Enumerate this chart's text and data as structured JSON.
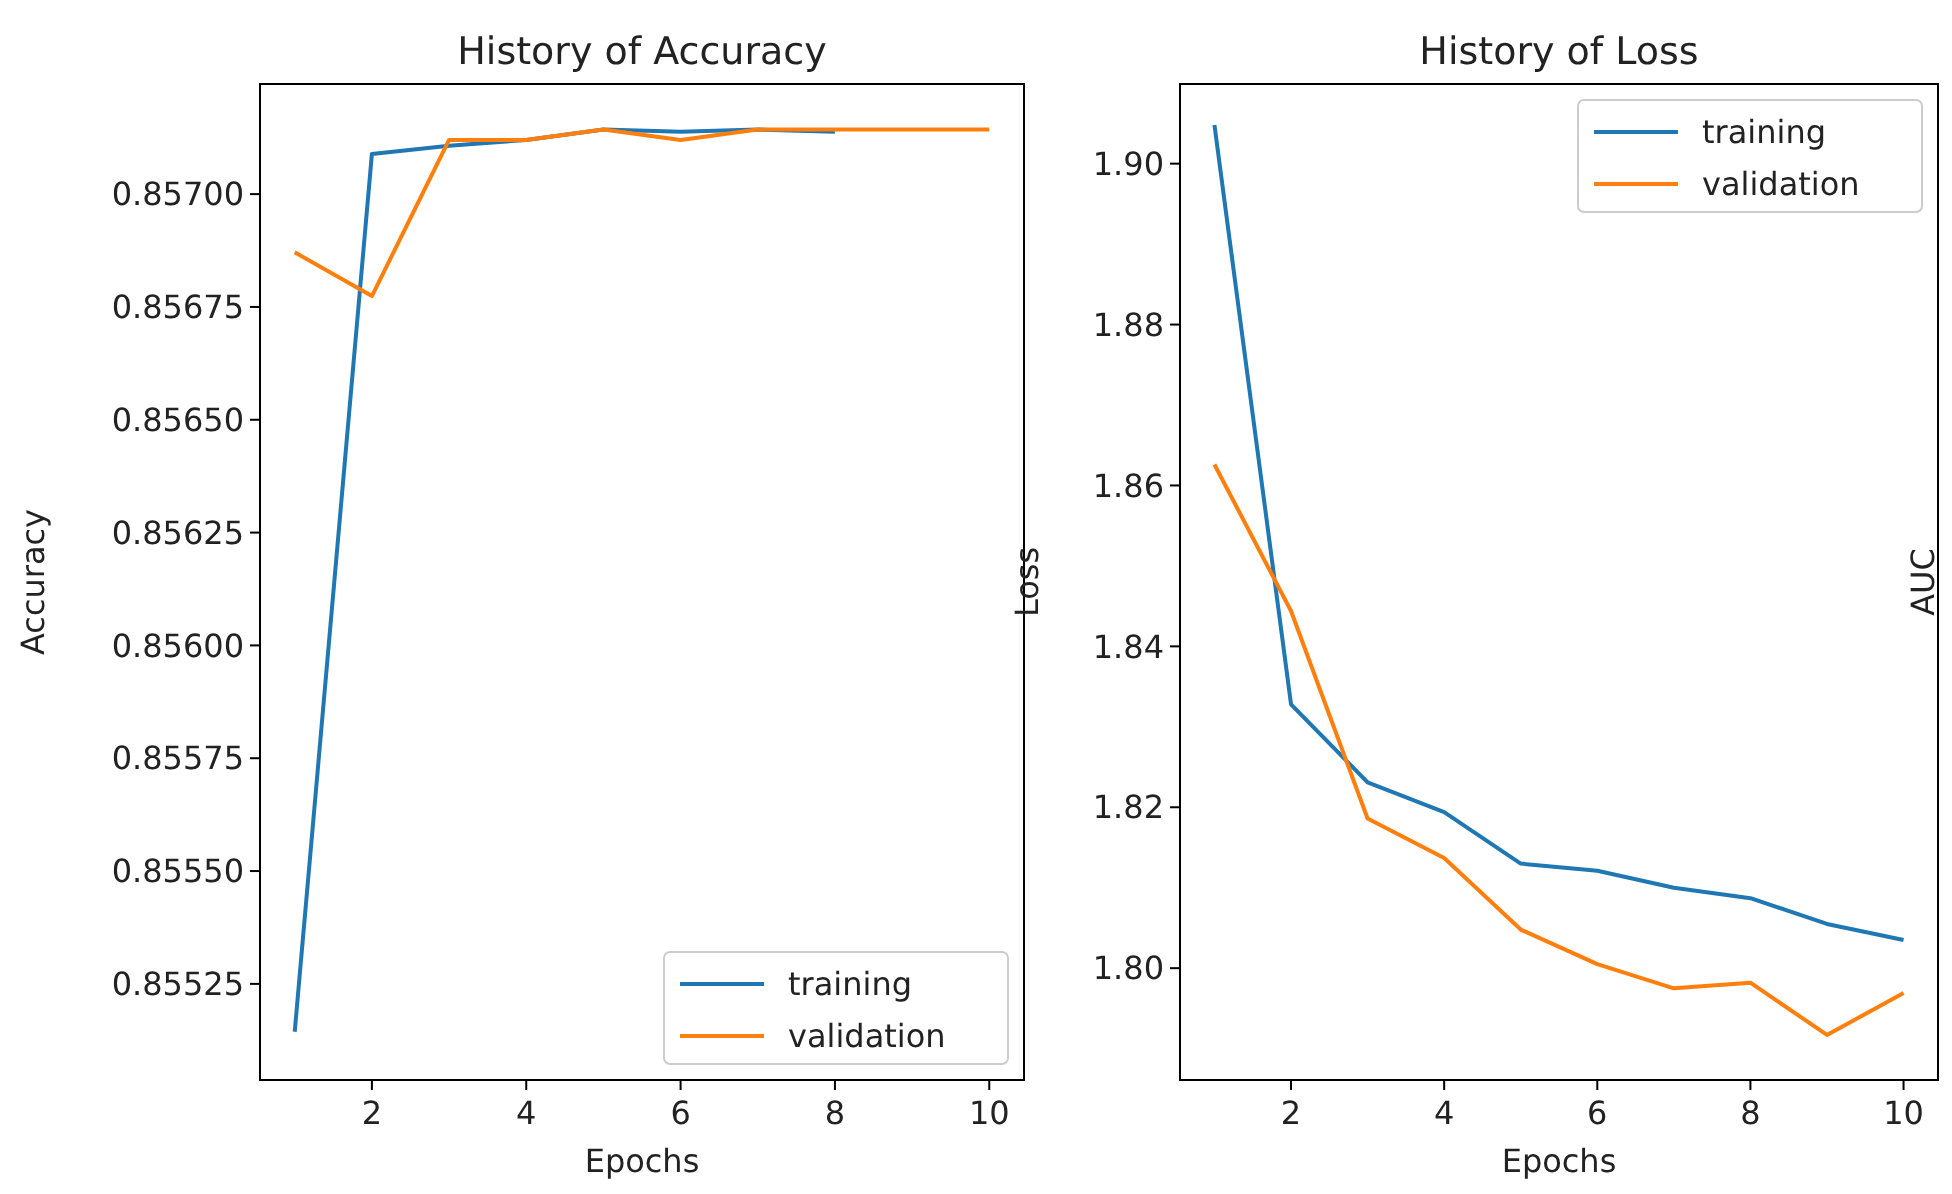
{
  "chart_data": [
    {
      "type": "line",
      "title": "History of Accuracy",
      "xlabel": "Epochs",
      "ylabel": "Accuracy",
      "x": [
        1,
        2,
        3,
        4,
        5,
        6,
        7,
        8,
        9,
        10
      ],
      "xlim": [
        0.55,
        10.45
      ],
      "xticks": [
        2,
        4,
        6,
        8,
        10
      ],
      "ylim": [
        0.855037,
        0.857244
      ],
      "yticks": [
        {
          "value": 0.85525,
          "label": "0.85525"
        },
        {
          "value": 0.8555,
          "label": "0.85550"
        },
        {
          "value": 0.85575,
          "label": "0.85575"
        },
        {
          "value": 0.856,
          "label": "0.85600"
        },
        {
          "value": 0.85625,
          "label": "0.85625"
        },
        {
          "value": 0.8565,
          "label": "0.85650"
        },
        {
          "value": 0.85675,
          "label": "0.85675"
        },
        {
          "value": 0.857,
          "label": "0.85700"
        }
      ],
      "legend": "bottom right",
      "grid": false,
      "series": [
        {
          "name": "training",
          "color": "#1f77b4",
          "values": [
            0.855144,
            0.857089,
            0.857107,
            0.85712,
            0.857143,
            0.857138,
            0.857143,
            0.857138,
            null,
            null
          ]
        },
        {
          "name": "validation",
          "color": "#ff7f0e",
          "values": [
            0.856871,
            0.856774,
            0.85712,
            0.85712,
            0.857143,
            0.85712,
            0.857143,
            0.857143,
            0.857143,
            0.857143
          ]
        }
      ]
    },
    {
      "type": "line",
      "title": "History of Loss",
      "xlabel": "Epochs",
      "ylabel": "Loss",
      "x": [
        1,
        2,
        3,
        4,
        5,
        6,
        7,
        8,
        9,
        10
      ],
      "xlim": [
        0.55,
        10.45
      ],
      "xticks": [
        2,
        4,
        6,
        8,
        10
      ],
      "ylim": [
        1.7861,
        1.9099
      ],
      "yticks": [
        {
          "value": 1.8,
          "label": "1.80"
        },
        {
          "value": 1.82,
          "label": "1.82"
        },
        {
          "value": 1.84,
          "label": "1.84"
        },
        {
          "value": 1.86,
          "label": "1.86"
        },
        {
          "value": 1.88,
          "label": "1.88"
        },
        {
          "value": 1.9,
          "label": "1.90"
        }
      ],
      "legend": "top right",
      "grid": false,
      "series": [
        {
          "name": "training",
          "color": "#1f77b4",
          "values": [
            1.9048,
            1.8328,
            1.8231,
            1.8194,
            1.813,
            1.8121,
            1.81,
            1.8087,
            1.8055,
            1.8035
          ]
        },
        {
          "name": "validation",
          "color": "#ff7f0e",
          "values": [
            1.8626,
            1.8444,
            1.8186,
            1.8137,
            1.8048,
            1.8005,
            1.7975,
            1.7982,
            1.7917,
            1.7969
          ]
        }
      ]
    },
    {
      "type": "other",
      "ylabel": "AUC"
    }
  ]
}
